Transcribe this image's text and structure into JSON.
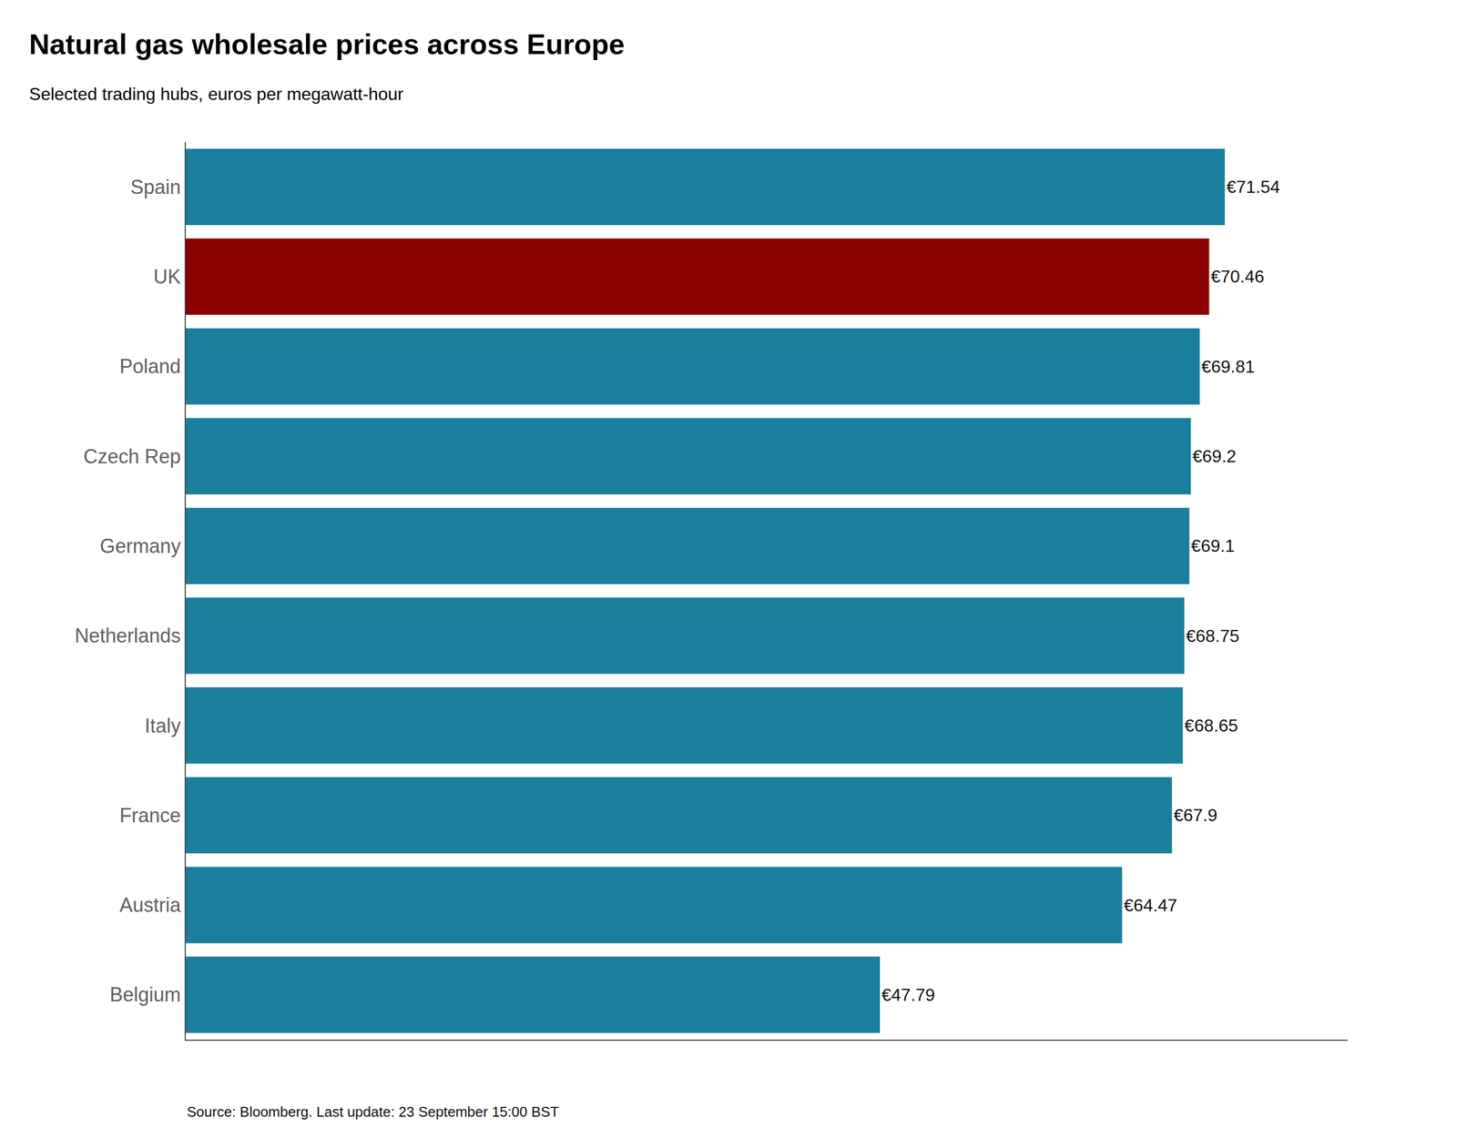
{
  "chart_data": {
    "type": "bar",
    "orientation": "horizontal",
    "title": "Natural gas wholesale prices across Europe",
    "subtitle": "Selected trading hubs, euros per megawatt-hour",
    "source": "Source: Bloomberg. Last update: 23 September 15:00 BST",
    "categories": [
      "Spain",
      "UK",
      "Poland",
      "Czech Rep",
      "Germany",
      "Netherlands",
      "Italy",
      "France",
      "Austria",
      "Belgium"
    ],
    "values": [
      71.54,
      70.46,
      69.81,
      69.2,
      69.1,
      68.75,
      68.65,
      67.9,
      64.47,
      47.79
    ],
    "value_labels": [
      "€71.54",
      "€70.46",
      "€69.81",
      "€69.2",
      "€69.1",
      "€68.75",
      "€68.65",
      "€67.9",
      "€64.47",
      "€47.79"
    ],
    "colors": [
      "#1a7f9c",
      "#8b0000",
      "#1a7f9c",
      "#1a7f9c",
      "#1a7f9c",
      "#1a7f9c",
      "#1a7f9c",
      "#1a7f9c",
      "#1a7f9c",
      "#1a7f9c"
    ],
    "data_labels": true,
    "xlim": [
      0,
      80
    ],
    "xticks": [],
    "tick_labels": "y",
    "grid": false
  }
}
